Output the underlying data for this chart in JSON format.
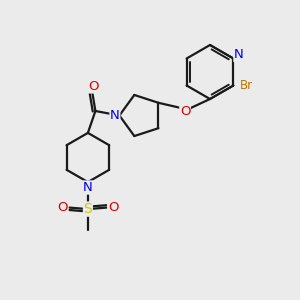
{
  "bg_color": "#ebebeb",
  "bond_color": "#1a1a1a",
  "bond_width": 1.6,
  "atom_colors": {
    "N": "#0000ee",
    "O": "#dd0000",
    "Br": "#bb7700",
    "S": "#cccc00",
    "C": "#1a1a1a"
  },
  "font_size": 8.5,
  "xlim": [
    0,
    10
  ],
  "ylim": [
    0,
    10
  ]
}
